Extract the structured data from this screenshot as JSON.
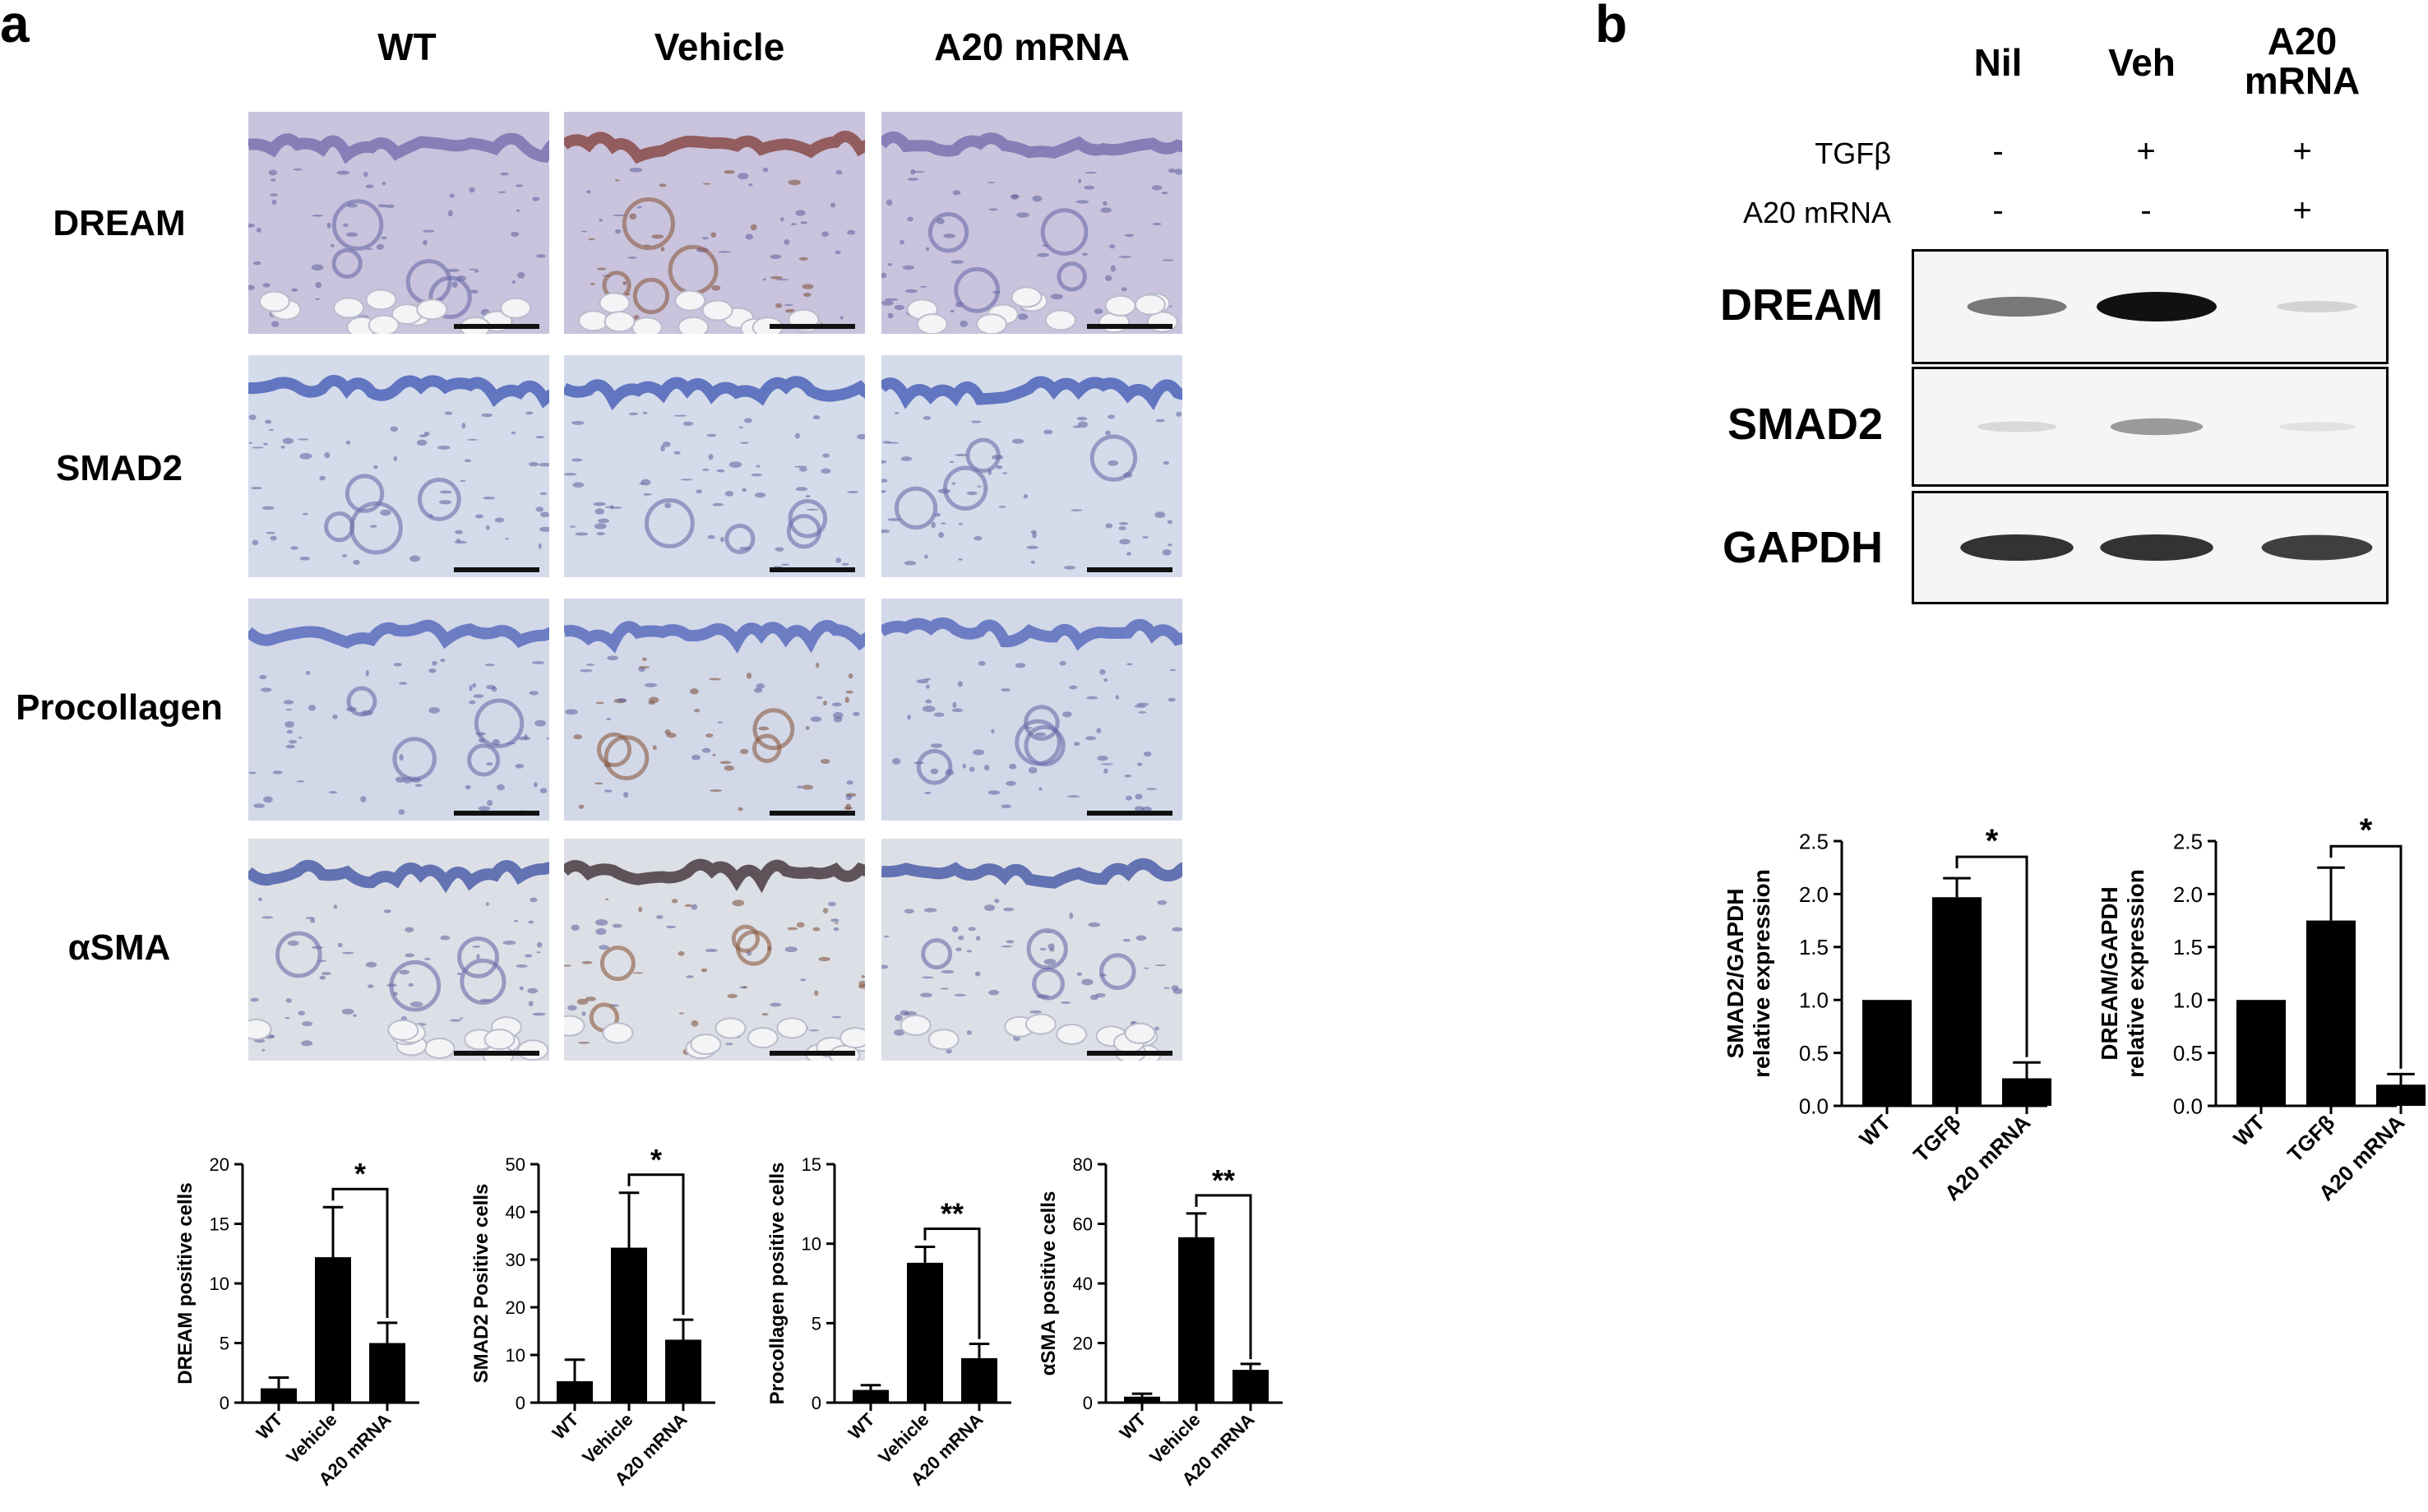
{
  "panel_a": {
    "letter": "a",
    "columns": [
      "WT",
      "Vehicle",
      "A20 mRNA"
    ],
    "rows": [
      "DREAM",
      "SMAD2",
      "Procollagen",
      "αSMA"
    ]
  },
  "panel_b": {
    "letter": "b",
    "lanes": [
      "Nil",
      "Veh",
      "A20\nmRNA"
    ],
    "conditions": [
      {
        "label": "TGFβ",
        "marks": [
          "-",
          "+",
          "+"
        ]
      },
      {
        "label": "A20 mRNA",
        "marks": [
          "-",
          "-",
          "+"
        ]
      }
    ],
    "blots": [
      {
        "label": "DREAM",
        "bands": [
          0.55,
          1.0,
          0.15
        ]
      },
      {
        "label": "SMAD2",
        "bands": [
          0.12,
          0.4,
          0.05
        ]
      },
      {
        "label": "GAPDH",
        "bands": [
          0.85,
          0.85,
          0.8
        ]
      }
    ]
  },
  "chart_data": [
    {
      "type": "bar",
      "categories": [
        "WT",
        "Vehicle",
        "A20 mRNA"
      ],
      "values": [
        1.2,
        12.2,
        5.0
      ],
      "errors": [
        0.9,
        4.2,
        1.7
      ],
      "ylabel": "DREAM positive cells",
      "ylim": [
        0,
        20
      ],
      "yticks": [
        0,
        5,
        10,
        15,
        20
      ],
      "significance": {
        "from": 1,
        "to": 2,
        "label": "*"
      }
    },
    {
      "type": "bar",
      "categories": [
        "WT",
        "Vehicle",
        "A20 mRNA"
      ],
      "values": [
        4.5,
        32.5,
        13.2
      ],
      "errors": [
        4.5,
        11.5,
        4.2
      ],
      "ylabel": "SMAD2 Positive cells",
      "ylim": [
        0,
        50
      ],
      "yticks": [
        0,
        10,
        20,
        30,
        40,
        50
      ],
      "significance": {
        "from": 1,
        "to": 2,
        "label": "*"
      }
    },
    {
      "type": "bar",
      "categories": [
        "WT",
        "Vehicle",
        "A20 mRNA"
      ],
      "values": [
        0.8,
        8.8,
        2.8
      ],
      "errors": [
        0.3,
        1.0,
        0.9
      ],
      "ylabel": "Procollagen positive cells",
      "ylim": [
        0,
        15
      ],
      "yticks": [
        0,
        5,
        10,
        15
      ],
      "significance": {
        "from": 1,
        "to": 2,
        "label": "**"
      }
    },
    {
      "type": "bar",
      "categories": [
        "WT",
        "Vehicle",
        "A20 mRNA"
      ],
      "values": [
        2.0,
        55.5,
        11.0
      ],
      "errors": [
        1.0,
        8.0,
        2.0
      ],
      "ylabel": "αSMA positive cells",
      "ylim": [
        0,
        80
      ],
      "yticks": [
        0,
        20,
        40,
        60,
        80
      ],
      "significance": {
        "from": 1,
        "to": 2,
        "label": "**"
      }
    },
    {
      "type": "bar",
      "categories": [
        "WT",
        "TGFβ",
        "A20 mRNA"
      ],
      "values": [
        1.0,
        1.97,
        0.26
      ],
      "errors": [
        0.0,
        0.18,
        0.15
      ],
      "ylabel": "SMAD2/GAPDH\nrelative expression",
      "ylim": [
        0,
        2.5
      ],
      "yticks": [
        0.0,
        0.5,
        1.0,
        1.5,
        2.0,
        2.5
      ],
      "significance": {
        "from": 1,
        "to": 2,
        "label": "*"
      }
    },
    {
      "type": "bar",
      "categories": [
        "WT",
        "TGFβ",
        "A20 mRNA"
      ],
      "values": [
        1.0,
        1.75,
        0.2
      ],
      "errors": [
        0.0,
        0.5,
        0.1
      ],
      "ylabel": "DREAM/GAPDH\nrelative expression",
      "ylim": [
        0,
        2.5
      ],
      "yticks": [
        0.0,
        0.5,
        1.0,
        1.5,
        2.0,
        2.5
      ],
      "significance": {
        "from": 1,
        "to": 2,
        "label": "*"
      }
    }
  ]
}
